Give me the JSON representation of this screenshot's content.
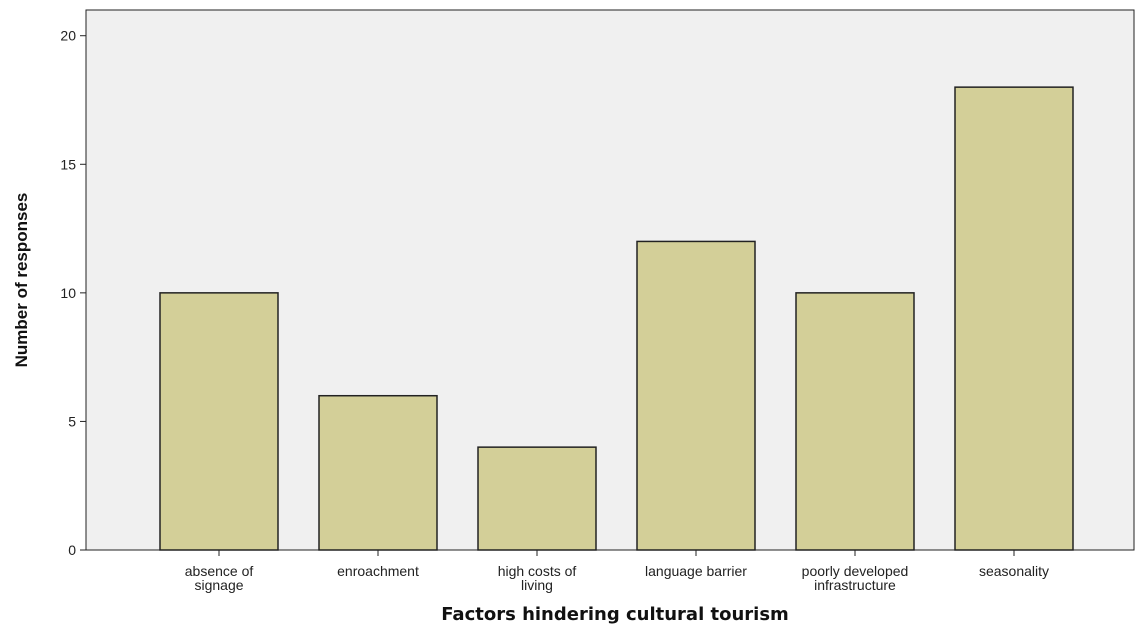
{
  "chart_data": {
    "type": "bar",
    "title": "",
    "xlabel": "Factors hindering cultural tourism",
    "ylabel": "Number of responses",
    "categories": [
      [
        "absence of",
        "signage"
      ],
      [
        "enroachment"
      ],
      [
        "high costs of",
        "living"
      ],
      [
        "language barrier"
      ],
      [
        "poorly developed",
        "infrastructure"
      ],
      [
        "seasonality"
      ]
    ],
    "values": [
      10,
      6,
      4,
      12,
      10,
      18
    ],
    "ylim": [
      0,
      21
    ],
    "yticks": [
      0,
      5,
      10,
      15,
      20
    ],
    "grid": false,
    "legend": "none",
    "colors": {
      "bar_fill": "#d3cf98",
      "bar_stroke": "#222222",
      "plot_background": "#f0f0f0",
      "axis": "#222222"
    }
  }
}
